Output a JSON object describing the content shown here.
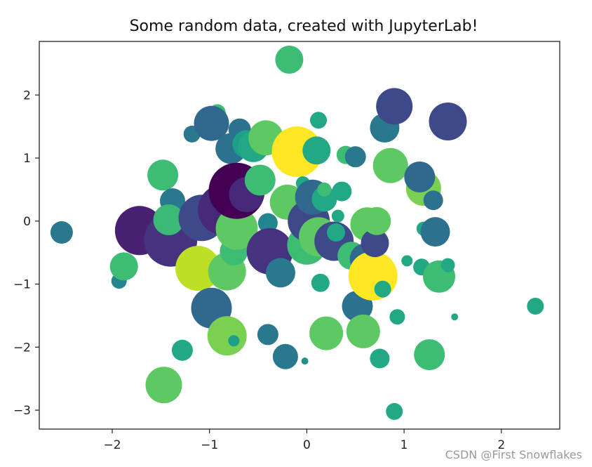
{
  "chart_data": {
    "type": "scatter",
    "title": "Some random data, created with JupyterLab!",
    "xlabel": "",
    "ylabel": "",
    "xlim": [
      -2.75,
      2.6
    ],
    "ylim": [
      -3.3,
      2.85
    ],
    "xticks": [
      -2,
      -1,
      0,
      1,
      2
    ],
    "yticks": [
      -3,
      -2,
      -1,
      0,
      1,
      2
    ],
    "xtick_labels": [
      "−2",
      "−1",
      "0",
      "1",
      "2"
    ],
    "ytick_labels": [
      "−3",
      "−2",
      "−1",
      "0",
      "1",
      "2"
    ],
    "grid": false,
    "colormap": "viridis",
    "points": [
      {
        "x": -2.52,
        "y": -0.18,
        "size": 16,
        "color": "#2a788e"
      },
      {
        "x": -1.93,
        "y": -0.95,
        "size": 11,
        "color": "#25858e"
      },
      {
        "x": -1.88,
        "y": -0.72,
        "size": 20,
        "color": "#3dbc74"
      },
      {
        "x": -1.72,
        "y": -0.15,
        "size": 35,
        "color": "#482173"
      },
      {
        "x": -1.6,
        "y": -0.28,
        "size": 6,
        "color": "#21918c"
      },
      {
        "x": -1.48,
        "y": 0.73,
        "size": 22,
        "color": "#3dbc74"
      },
      {
        "x": -1.38,
        "y": 0.32,
        "size": 18,
        "color": "#2a788e"
      },
      {
        "x": -1.4,
        "y": -0.3,
        "size": 38,
        "color": "#46327e"
      },
      {
        "x": -1.42,
        "y": 0.02,
        "size": 22,
        "color": "#3aba76"
      },
      {
        "x": -1.47,
        "y": -2.6,
        "size": 26,
        "color": "#5ec962"
      },
      {
        "x": -1.28,
        "y": -2.05,
        "size": 15,
        "color": "#22a884"
      },
      {
        "x": -1.18,
        "y": 1.38,
        "size": 12,
        "color": "#2a788e"
      },
      {
        "x": -1.08,
        "y": 0.05,
        "size": 33,
        "color": "#3e4989"
      },
      {
        "x": -1.12,
        "y": -0.75,
        "size": 32,
        "color": "#bddf26"
      },
      {
        "x": -0.98,
        "y": -1.38,
        "size": 29,
        "color": "#31688e"
      },
      {
        "x": -0.92,
        "y": 1.72,
        "size": 12,
        "color": "#3dbc74"
      },
      {
        "x": -0.98,
        "y": 1.55,
        "size": 25,
        "color": "#31688e"
      },
      {
        "x": -0.86,
        "y": 0.18,
        "size": 36,
        "color": "#482878"
      },
      {
        "x": -0.82,
        "y": -0.8,
        "size": 27,
        "color": "#5ec962"
      },
      {
        "x": -0.82,
        "y": -1.82,
        "size": 28,
        "color": "#7ad151"
      },
      {
        "x": -0.75,
        "y": -1.9,
        "size": 8,
        "color": "#1f9e89"
      },
      {
        "x": -0.78,
        "y": 1.15,
        "size": 22,
        "color": "#2c728e"
      },
      {
        "x": -0.69,
        "y": 1.45,
        "size": 16,
        "color": "#2c728e"
      },
      {
        "x": -0.62,
        "y": 1.22,
        "size": 20,
        "color": "#1f9e89"
      },
      {
        "x": -0.75,
        "y": -0.48,
        "size": 20,
        "color": "#3dbc74"
      },
      {
        "x": -0.72,
        "y": -0.12,
        "size": 30,
        "color": "#5ec962"
      },
      {
        "x": -0.72,
        "y": 0.48,
        "size": 40,
        "color": "#440154"
      },
      {
        "x": -0.62,
        "y": 0.42,
        "size": 25,
        "color": "#482878"
      },
      {
        "x": -0.55,
        "y": 1.18,
        "size": 22,
        "color": "#22a884"
      },
      {
        "x": -0.48,
        "y": 0.65,
        "size": 22,
        "color": "#3dbc74"
      },
      {
        "x": -0.42,
        "y": 1.32,
        "size": 25,
        "color": "#5ec962"
      },
      {
        "x": -0.4,
        "y": -0.03,
        "size": 14,
        "color": "#25858e"
      },
      {
        "x": -0.4,
        "y": -1.8,
        "size": 15,
        "color": "#2a788e"
      },
      {
        "x": -0.38,
        "y": -0.48,
        "size": 33,
        "color": "#46327e"
      },
      {
        "x": -0.27,
        "y": -0.82,
        "size": 21,
        "color": "#2a788e"
      },
      {
        "x": -0.22,
        "y": -2.15,
        "size": 18,
        "color": "#2a788e"
      },
      {
        "x": -0.18,
        "y": 2.56,
        "size": 20,
        "color": "#3dbc74"
      },
      {
        "x": -0.2,
        "y": 0.3,
        "size": 25,
        "color": "#5ec962"
      },
      {
        "x": -0.1,
        "y": 1.1,
        "size": 36,
        "color": "#fde725"
      },
      {
        "x": -0.1,
        "y": -0.45,
        "size": 4,
        "color": "#21918c"
      },
      {
        "x": -0.02,
        "y": -2.22,
        "size": 5,
        "color": "#21918c"
      },
      {
        "x": -0.04,
        "y": 0.6,
        "size": 10,
        "color": "#22a884"
      },
      {
        "x": 0.0,
        "y": -0.38,
        "size": 28,
        "color": "#3dbc74"
      },
      {
        "x": 0.02,
        "y": 0.0,
        "size": 30,
        "color": "#3e4989"
      },
      {
        "x": 0.06,
        "y": 0.38,
        "size": 25,
        "color": "#31688e"
      },
      {
        "x": 0.1,
        "y": 1.12,
        "size": 20,
        "color": "#22a884"
      },
      {
        "x": 0.12,
        "y": 1.6,
        "size": 12,
        "color": "#22a884"
      },
      {
        "x": 0.12,
        "y": -0.25,
        "size": 28,
        "color": "#5ec962"
      },
      {
        "x": 0.18,
        "y": 0.35,
        "size": 18,
        "color": "#22a884"
      },
      {
        "x": 0.18,
        "y": 0.5,
        "size": 10,
        "color": "#3dbc74"
      },
      {
        "x": 0.14,
        "y": -0.98,
        "size": 13,
        "color": "#22a884"
      },
      {
        "x": 0.2,
        "y": -1.78,
        "size": 24,
        "color": "#5ec962"
      },
      {
        "x": 0.28,
        "y": -0.32,
        "size": 28,
        "color": "#3e4989"
      },
      {
        "x": 0.3,
        "y": -0.18,
        "size": 13,
        "color": "#22a884"
      },
      {
        "x": 0.32,
        "y": 0.08,
        "size": 9,
        "color": "#22a884"
      },
      {
        "x": 0.36,
        "y": 0.47,
        "size": 14,
        "color": "#22a884"
      },
      {
        "x": 0.4,
        "y": 1.05,
        "size": 13,
        "color": "#3dbc74"
      },
      {
        "x": 0.5,
        "y": 1.02,
        "size": 15,
        "color": "#2a788e"
      },
      {
        "x": 0.46,
        "y": -0.55,
        "size": 20,
        "color": "#3dbc74"
      },
      {
        "x": 0.52,
        "y": -1.35,
        "size": 22,
        "color": "#2c728e"
      },
      {
        "x": 0.58,
        "y": -1.75,
        "size": 24,
        "color": "#5ec962"
      },
      {
        "x": 0.6,
        "y": -0.6,
        "size": 22,
        "color": "#31688e"
      },
      {
        "x": 0.62,
        "y": -0.05,
        "size": 24,
        "color": "#5ec962"
      },
      {
        "x": 0.68,
        "y": -0.87,
        "size": 35,
        "color": "#fde725"
      },
      {
        "x": 0.7,
        "y": -0.35,
        "size": 20,
        "color": "#3e4989"
      },
      {
        "x": 0.72,
        "y": 0.0,
        "size": 20,
        "color": "#5ec962"
      },
      {
        "x": 0.75,
        "y": -2.18,
        "size": 14,
        "color": "#22a884"
      },
      {
        "x": 0.78,
        "y": -1.08,
        "size": 12,
        "color": "#22a884"
      },
      {
        "x": 0.8,
        "y": 1.48,
        "size": 21,
        "color": "#2a788e"
      },
      {
        "x": 0.86,
        "y": 0.88,
        "size": 25,
        "color": "#5ec962"
      },
      {
        "x": 0.9,
        "y": 1.82,
        "size": 26,
        "color": "#3e4989"
      },
      {
        "x": 0.9,
        "y": -3.02,
        "size": 12,
        "color": "#22a884"
      },
      {
        "x": 0.93,
        "y": -1.52,
        "size": 11,
        "color": "#22a884"
      },
      {
        "x": 1.03,
        "y": -0.63,
        "size": 8,
        "color": "#22a884"
      },
      {
        "x": 1.2,
        "y": 0.52,
        "size": 25,
        "color": "#7ad151"
      },
      {
        "x": 1.16,
        "y": 0.7,
        "size": 22,
        "color": "#31688e"
      },
      {
        "x": 1.2,
        "y": -0.12,
        "size": 10,
        "color": "#22a884"
      },
      {
        "x": 1.18,
        "y": -0.73,
        "size": 12,
        "color": "#22a884"
      },
      {
        "x": 1.26,
        "y": -2.12,
        "size": 22,
        "color": "#3dbc74"
      },
      {
        "x": 1.3,
        "y": 0.33,
        "size": 14,
        "color": "#2c728e"
      },
      {
        "x": 1.32,
        "y": -0.17,
        "size": 21,
        "color": "#2c728e"
      },
      {
        "x": 1.36,
        "y": -0.88,
        "size": 23,
        "color": "#3dbc74"
      },
      {
        "x": 1.45,
        "y": -0.7,
        "size": 10,
        "color": "#22a884"
      },
      {
        "x": 1.45,
        "y": 1.58,
        "size": 27,
        "color": "#3e4989"
      },
      {
        "x": 1.52,
        "y": -1.52,
        "size": 5,
        "color": "#22a884"
      },
      {
        "x": 2.35,
        "y": -1.35,
        "size": 12,
        "color": "#22a884"
      }
    ]
  },
  "watermark": "CSDN @First Snowflakes"
}
